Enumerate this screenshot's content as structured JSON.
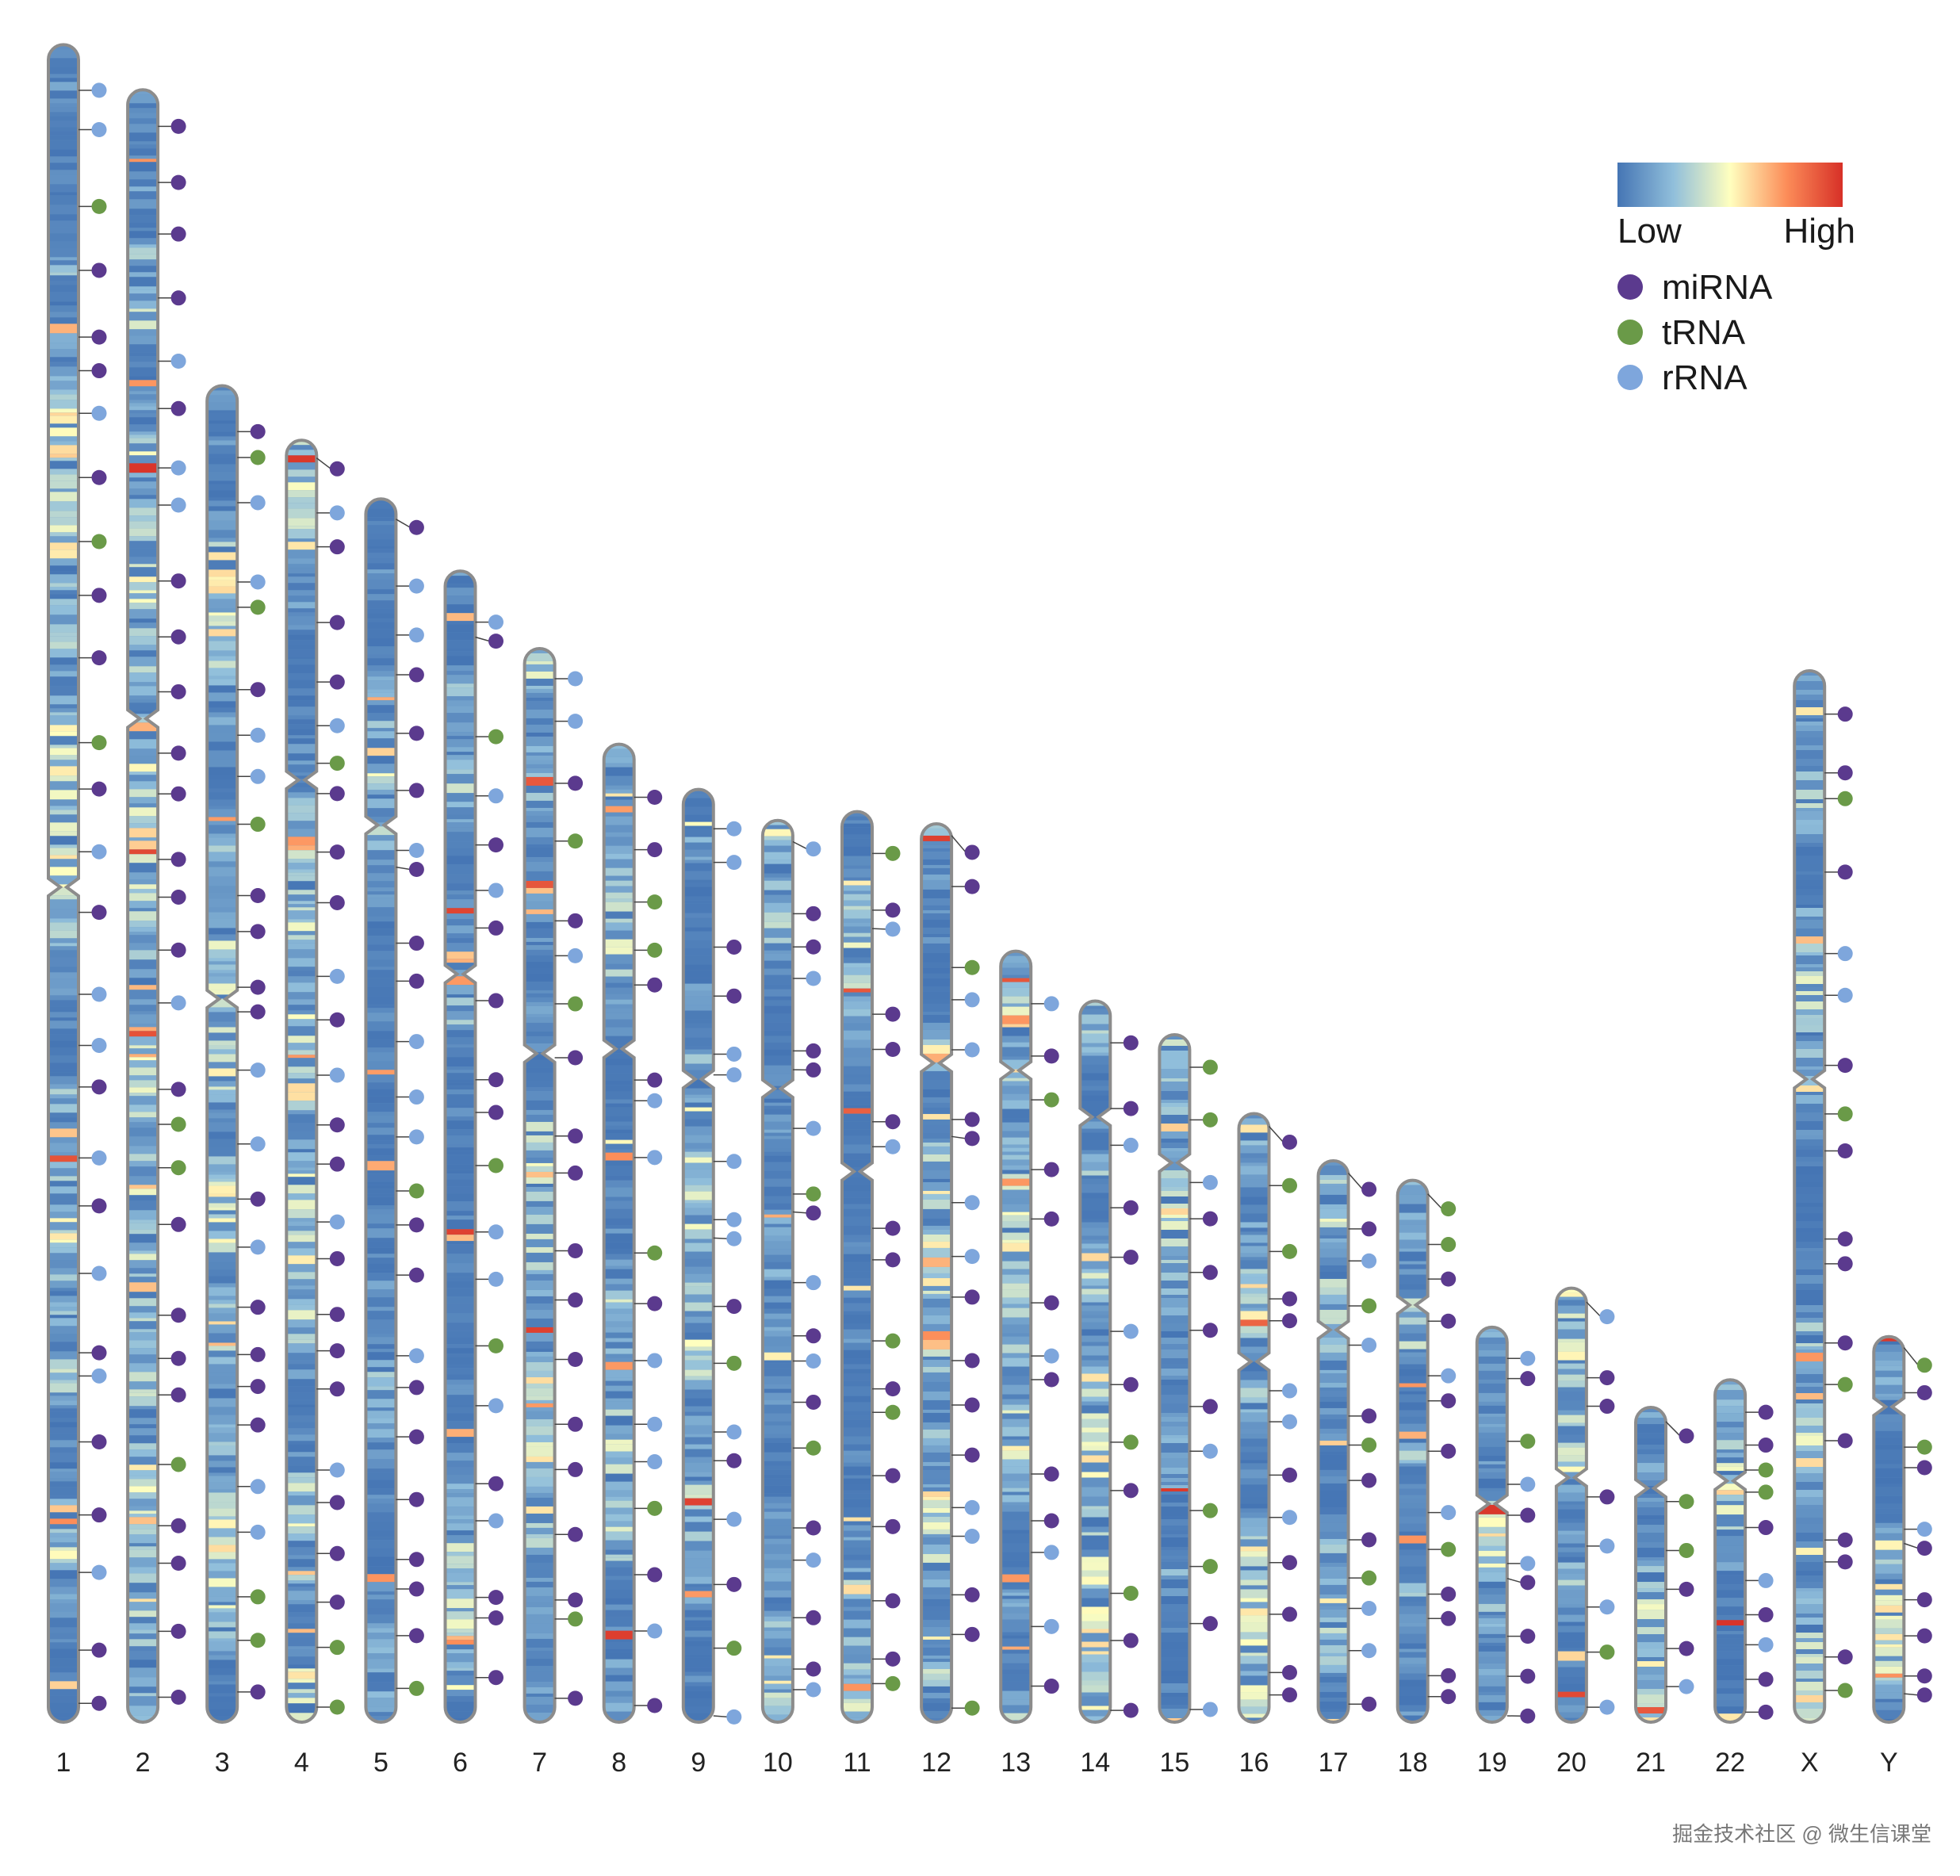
{
  "chromosomes": [
    {
      "label": "1",
      "length": 248.9,
      "centromere": 125.0,
      "seed": 11
    },
    {
      "label": "2",
      "length": 242.2,
      "centromere": 93.3,
      "seed": 23
    },
    {
      "label": "3",
      "length": 198.3,
      "centromere": 91.0,
      "seed": 37
    },
    {
      "label": "4",
      "length": 190.2,
      "centromere": 50.4,
      "seed": 41
    },
    {
      "label": "5",
      "length": 181.5,
      "centromere": 48.4,
      "seed": 53
    },
    {
      "label": "6",
      "length": 170.8,
      "centromere": 59.8,
      "seed": 67
    },
    {
      "label": "7",
      "length": 159.3,
      "centromere": 60.1,
      "seed": 71
    },
    {
      "label": "8",
      "length": 145.1,
      "centromere": 45.2,
      "seed": 83
    },
    {
      "label": "9",
      "length": 138.4,
      "centromere": 43.0,
      "seed": 97
    },
    {
      "label": "10",
      "length": 133.8,
      "centromere": 39.8,
      "seed": 101
    },
    {
      "label": "11",
      "length": 135.1,
      "centromere": 53.4,
      "seed": 113
    },
    {
      "label": "12",
      "length": 133.3,
      "centromere": 35.5,
      "seed": 127
    },
    {
      "label": "13",
      "length": 114.4,
      "centromere": 17.7,
      "seed": 131
    },
    {
      "label": "14",
      "length": 107.0,
      "centromere": 17.2,
      "seed": 149
    },
    {
      "label": "15",
      "length": 102.0,
      "centromere": 19.0,
      "seed": 151
    },
    {
      "label": "16",
      "length": 90.3,
      "centromere": 36.8,
      "seed": 163
    },
    {
      "label": "17",
      "length": 83.3,
      "centromere": 25.1,
      "seed": 173
    },
    {
      "label": "18",
      "length": 80.4,
      "centromere": 18.5,
      "seed": 181
    },
    {
      "label": "19",
      "length": 58.6,
      "centromere": 26.2,
      "seed": 191
    },
    {
      "label": "20",
      "length": 64.4,
      "centromere": 28.1,
      "seed": 199
    },
    {
      "label": "21",
      "length": 46.7,
      "centromere": 12.0,
      "seed": 211
    },
    {
      "label": "22",
      "length": 50.8,
      "centromere": 15.0,
      "seed": 223
    },
    {
      "label": "X",
      "length": 156.0,
      "centromere": 60.6,
      "seed": 227
    },
    {
      "label": "Y",
      "length": 57.2,
      "centromere": 10.4,
      "seed": 229
    }
  ],
  "heatmap_scale": {
    "colors": [
      "#4575b4",
      "#91bfdb",
      "#ffffbf",
      "#fc8d59",
      "#d73027"
    ],
    "low_label": "Low",
    "high_label": "High"
  },
  "features": [
    {
      "type": "miRNA",
      "label": "miRNA",
      "color": "#5b3a8e"
    },
    {
      "type": "tRNA",
      "label": "tRNA",
      "color": "#6a9a48"
    },
    {
      "type": "rRNA",
      "label": "rRNA",
      "color": "#7ea6dc"
    }
  ],
  "watermark": "掘金技术社区 @ 微生信课堂"
}
